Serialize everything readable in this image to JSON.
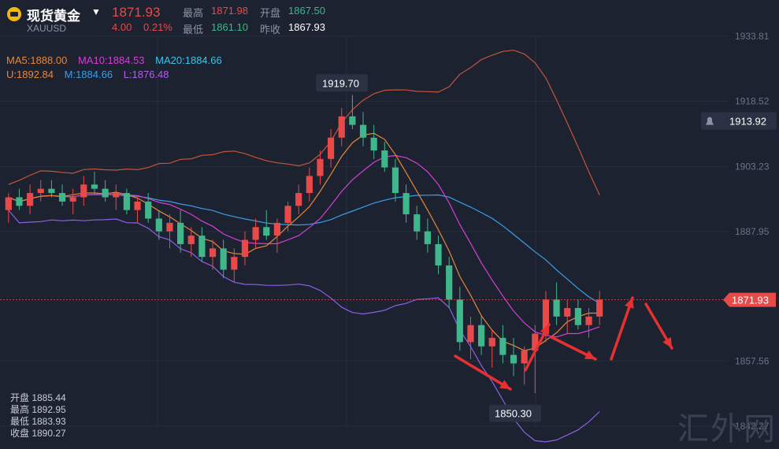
{
  "header": {
    "name": "现货黄金",
    "code": "XAUUSD",
    "price": "1871.93",
    "change": "4.00",
    "change_pct": "0.21%",
    "high_label": "最高",
    "high": "1871.98",
    "open_label": "开盘",
    "open": "1867.50",
    "low_label": "最低",
    "low": "1861.10",
    "prev_label": "昨收",
    "prev": "1867.93"
  },
  "indicators": {
    "ma5": "MA5:1888.00",
    "ma10": "MA10:1884.53",
    "ma20": "MA20:1884.66",
    "u": "U:1892.84",
    "m": "M:1884.66",
    "l": "L:1876.48"
  },
  "ohlc": {
    "open": "开盘 1885.44",
    "high": "最高 1892.95",
    "low": "最低 1883.93",
    "close": "收盘 1890.27"
  },
  "alert_price": "1913.92",
  "current_price_tag": "1871.93",
  "watermark": "汇外网",
  "colors": {
    "up": "#e84a4a",
    "down": "#3fb68b",
    "ma5": "#e8863a",
    "ma10": "#d63fd6",
    "ma20": "#3a9ee8",
    "boll_outer": "#8e5fe8",
    "boll_upper": "#c4553a"
  },
  "chart_data": {
    "type": "candlestick",
    "ylim": [
      1842.27,
      1933.81
    ],
    "y_ticks": [
      "1933.81",
      "1918.52",
      "1903.23",
      "1887.95",
      "1857.56",
      "1842.27"
    ],
    "annotations": {
      "high": "1919.70",
      "low": "1850.30"
    },
    "candles": [
      [
        1893,
        1897,
        1890,
        1896
      ],
      [
        1896,
        1898,
        1893,
        1894
      ],
      [
        1894,
        1899,
        1892,
        1897
      ],
      [
        1897,
        1900,
        1895,
        1898
      ],
      [
        1898,
        1900,
        1896,
        1897
      ],
      [
        1897,
        1899,
        1894,
        1895
      ],
      [
        1895,
        1898,
        1892,
        1896
      ],
      [
        1896,
        1901,
        1894,
        1899
      ],
      [
        1899,
        1902,
        1897,
        1898
      ],
      [
        1898,
        1900,
        1895,
        1896
      ],
      [
        1896,
        1899,
        1893,
        1897
      ],
      [
        1897,
        1898,
        1892,
        1893
      ],
      [
        1893,
        1896,
        1890,
        1895
      ],
      [
        1895,
        1897,
        1890,
        1891
      ],
      [
        1891,
        1893,
        1886,
        1888
      ],
      [
        1888,
        1892,
        1884,
        1890
      ],
      [
        1890,
        1893,
        1883,
        1885
      ],
      [
        1885,
        1889,
        1882,
        1887
      ],
      [
        1887,
        1889,
        1881,
        1882
      ],
      [
        1882,
        1886,
        1879,
        1884
      ],
      [
        1884,
        1886,
        1877,
        1879
      ],
      [
        1879,
        1884,
        1876,
        1882
      ],
      [
        1882,
        1888,
        1880,
        1886
      ],
      [
        1886,
        1891,
        1884,
        1889
      ],
      [
        1889,
        1893,
        1886,
        1887
      ],
      [
        1887,
        1891,
        1883,
        1890
      ],
      [
        1890,
        1895,
        1888,
        1894
      ],
      [
        1894,
        1899,
        1892,
        1897
      ],
      [
        1897,
        1903,
        1895,
        1901
      ],
      [
        1901,
        1907,
        1899,
        1905
      ],
      [
        1905,
        1912,
        1903,
        1910
      ],
      [
        1910,
        1917,
        1908,
        1915
      ],
      [
        1915,
        1920,
        1912,
        1913
      ],
      [
        1913,
        1916,
        1908,
        1910
      ],
      [
        1910,
        1913,
        1905,
        1907
      ],
      [
        1907,
        1909,
        1902,
        1903
      ],
      [
        1903,
        1905,
        1895,
        1897
      ],
      [
        1897,
        1899,
        1890,
        1892
      ],
      [
        1892,
        1894,
        1886,
        1888
      ],
      [
        1888,
        1891,
        1883,
        1885
      ],
      [
        1885,
        1887,
        1878,
        1880
      ],
      [
        1880,
        1882,
        1870,
        1872
      ],
      [
        1872,
        1875,
        1860,
        1862
      ],
      [
        1862,
        1868,
        1858,
        1866
      ],
      [
        1866,
        1868,
        1859,
        1861
      ],
      [
        1861,
        1865,
        1856,
        1863
      ],
      [
        1863,
        1866,
        1857,
        1859
      ],
      [
        1859,
        1863,
        1854,
        1857
      ],
      [
        1857,
        1861,
        1852,
        1860
      ],
      [
        1860,
        1866,
        1850,
        1864
      ],
      [
        1864,
        1874,
        1862,
        1872
      ],
      [
        1872,
        1876,
        1866,
        1868
      ],
      [
        1868,
        1872,
        1864,
        1870
      ],
      [
        1870,
        1872,
        1865,
        1866
      ],
      [
        1866,
        1870,
        1863,
        1868
      ],
      [
        1868,
        1874,
        1866,
        1872
      ]
    ]
  }
}
